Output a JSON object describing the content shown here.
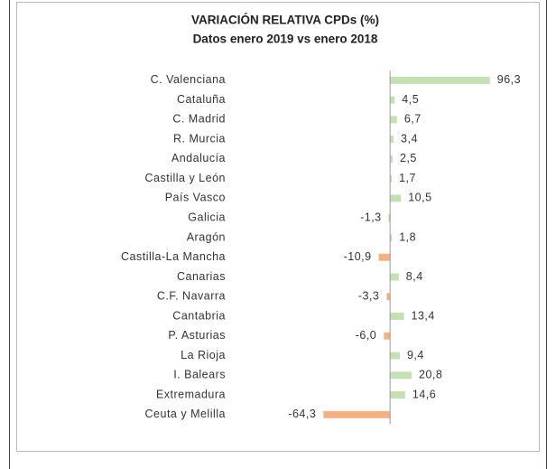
{
  "chart_data": {
    "type": "bar",
    "orientation": "horizontal",
    "title": "VARIACIÓN RELATIVA CPDs (%)",
    "subtitle": "Datos enero 2019 vs enero 2018",
    "categories": [
      "C. Valenciana",
      "Cataluña",
      "C. Madrid",
      "R. Murcia",
      "Andalucía",
      "Castilla y León",
      "País Vasco",
      "Galicia",
      "Aragón",
      "Castilla-La Mancha",
      "Canarias",
      "C.F. Navarra",
      "Cantabria",
      "P. Asturias",
      "La Rioja",
      "I. Balears",
      "Extremadura",
      "Ceuta y Melilla"
    ],
    "values": [
      96.3,
      4.5,
      6.7,
      3.4,
      2.5,
      1.7,
      10.5,
      -1.3,
      1.8,
      -10.9,
      8.4,
      -3.3,
      13.4,
      -6.0,
      9.4,
      20.8,
      14.6,
      -64.3
    ],
    "value_labels": [
      "96,3",
      "4,5",
      "6,7",
      "3,4",
      "2,5",
      "1,7",
      "10,5",
      "-1,3",
      "1,8",
      "-10,9",
      "8,4",
      "-3,3",
      "13,4",
      "-6,0",
      "9,4",
      "20,8",
      "14,6",
      "-64,3"
    ],
    "positive_color": "#c5e0b3",
    "negative_color": "#f4b183",
    "xlim": [
      -75,
      100
    ]
  }
}
